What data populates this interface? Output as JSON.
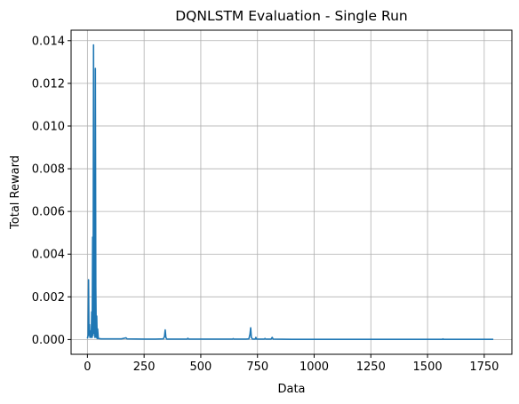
{
  "chart_data": {
    "type": "line",
    "title": "DQNLSTM Evaluation - Single Run",
    "xlabel": "Data",
    "ylabel": "Total Reward",
    "xlim": [
      -72,
      1872
    ],
    "ylim": [
      -0.00069,
      0.01449
    ],
    "grid": true,
    "legend": "none",
    "x_ticks": [
      0,
      250,
      500,
      750,
      1000,
      1250,
      1500,
      1750
    ],
    "x_tick_labels": [
      "0",
      "250",
      "500",
      "750",
      "1000",
      "1250",
      "1500",
      "1750"
    ],
    "y_ticks": [
      0.0,
      0.002,
      0.004,
      0.006,
      0.008,
      0.01,
      0.012,
      0.014
    ],
    "y_tick_labels": [
      "0.000",
      "0.002",
      "0.004",
      "0.006",
      "0.008",
      "0.010",
      "0.012",
      "0.014"
    ],
    "series": [
      {
        "color": "#1f77b4",
        "points": [
          [
            0,
            5e-05
          ],
          [
            3,
            0.0002
          ],
          [
            5,
            0.0028
          ],
          [
            7,
            0.0002
          ],
          [
            9,
            0.0007
          ],
          [
            11,
            0.0001
          ],
          [
            13,
            0.0004
          ],
          [
            15,
            0.0001
          ],
          [
            17,
            0.00015
          ],
          [
            19,
            0.0013
          ],
          [
            21,
            0.0001
          ],
          [
            23,
            0.0048
          ],
          [
            25,
            0.0002
          ],
          [
            27,
            0.0138
          ],
          [
            29,
            0.0003
          ],
          [
            31,
            0.0024
          ],
          [
            33,
            0.0001
          ],
          [
            35,
            0.0127
          ],
          [
            37,
            0.0025
          ],
          [
            39,
            0.0001
          ],
          [
            41,
            0.0011
          ],
          [
            43,
            5e-05
          ],
          [
            45,
            0.0005
          ],
          [
            48,
            5e-05
          ],
          [
            60,
            3e-05
          ],
          [
            100,
            3e-05
          ],
          [
            150,
            3e-05
          ],
          [
            170,
            8e-05
          ],
          [
            175,
            3e-05
          ],
          [
            250,
            2e-05
          ],
          [
            300,
            2e-05
          ],
          [
            335,
            3e-05
          ],
          [
            340,
            0.00015
          ],
          [
            343,
            0.00045
          ],
          [
            346,
            0.0001
          ],
          [
            350,
            2e-05
          ],
          [
            440,
            2e-05
          ],
          [
            443,
            6e-05
          ],
          [
            446,
            2e-05
          ],
          [
            600,
            2e-05
          ],
          [
            640,
            2e-05
          ],
          [
            643,
            4e-05
          ],
          [
            646,
            2e-05
          ],
          [
            700,
            2e-05
          ],
          [
            712,
            3e-05
          ],
          [
            717,
            0.00025
          ],
          [
            720,
            0.00055
          ],
          [
            723,
            0.0001
          ],
          [
            728,
            2e-05
          ],
          [
            740,
            2e-05
          ],
          [
            743,
            0.0001
          ],
          [
            746,
            2e-05
          ],
          [
            780,
            2e-05
          ],
          [
            783,
            5e-05
          ],
          [
            786,
            2e-05
          ],
          [
            810,
            2e-05
          ],
          [
            815,
            0.0001
          ],
          [
            819,
            2e-05
          ],
          [
            900,
            1e-05
          ],
          [
            1000,
            1e-05
          ],
          [
            1100,
            1e-05
          ],
          [
            1200,
            1e-05
          ],
          [
            1300,
            1e-05
          ],
          [
            1400,
            1e-05
          ],
          [
            1500,
            1e-05
          ],
          [
            1565,
            1e-05
          ],
          [
            1568,
            3e-05
          ],
          [
            1571,
            1e-05
          ],
          [
            1650,
            1e-05
          ],
          [
            1700,
            1e-05
          ],
          [
            1750,
            1e-05
          ],
          [
            1790,
            1e-05
          ]
        ]
      }
    ]
  }
}
